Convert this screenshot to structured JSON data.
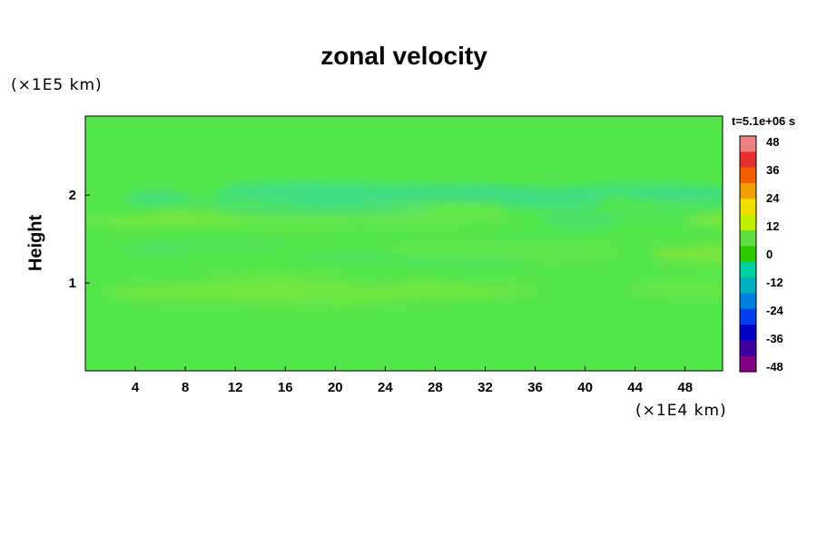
{
  "chart_data": {
    "type": "heatmap",
    "title": "zonal velocity",
    "ylabel": "Height",
    "y_unit": "(×1E5 km)",
    "x_unit": "(×1E4 km)",
    "time_label": "t=5.1e+06 s",
    "xlim": [
      0,
      51
    ],
    "ylim": [
      0,
      2.9
    ],
    "x_ticks": [
      4,
      8,
      12,
      16,
      20,
      24,
      28,
      32,
      36,
      40,
      44,
      48
    ],
    "y_ticks": [
      1,
      2
    ],
    "colorbar": {
      "ticks": [
        48,
        36,
        24,
        12,
        0,
        -12,
        -24,
        -36,
        -48
      ],
      "range": [
        -48,
        48
      ],
      "colors": [
        "#f08080",
        "#e83030",
        "#f06000",
        "#f0a000",
        "#f0e000",
        "#c0f000",
        "#60e040",
        "#30c800",
        "#00d0a0",
        "#00b0c0",
        "#0080e0",
        "#0040f0",
        "#0000c0",
        "#4000a0",
        "#800080"
      ]
    },
    "field_summary": {
      "background_value": 0,
      "bands": [
        {
          "height": 2.0,
          "value_min": -6,
          "value_max": -3
        },
        {
          "height": 1.75,
          "value_min": -6,
          "value_max": 4
        },
        {
          "height": 1.35,
          "value_min": -4,
          "value_max": 3
        },
        {
          "height": 0.9,
          "value_min": 1,
          "value_max": 3
        }
      ]
    }
  }
}
